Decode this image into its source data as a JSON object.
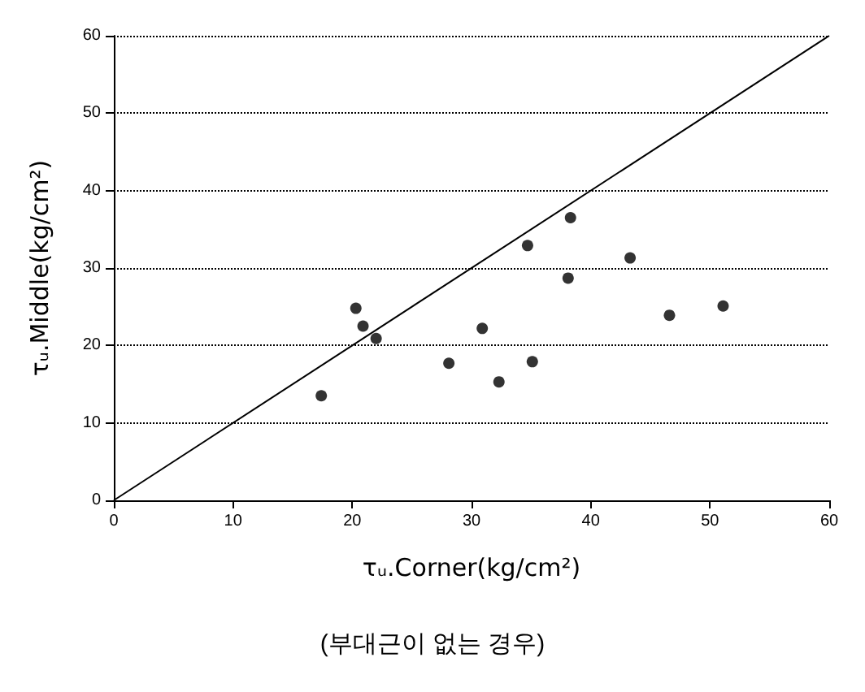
{
  "chart_data": {
    "type": "scatter",
    "xlabel": "τᵤ.Corner(kg/cm²)",
    "ylabel": "τᵤ.Middle(kg/cm²)",
    "annotations": [
      "(부대근이 없는 경우)"
    ],
    "series": [
      {
        "color": "#000000",
        "x": [
          17.4,
          20.3,
          20.9,
          22.0,
          28.1,
          30.9,
          32.3,
          34.7,
          35.1,
          38.3,
          38.1,
          43.3,
          46.6,
          51.1
        ],
        "values": [
          13.5,
          24.8,
          22.5,
          20.9,
          17.7,
          22.2,
          15.3,
          32.9,
          17.9,
          36.5,
          28.7,
          31.3,
          23.9,
          25.1
        ]
      },
      {
        "type": "line",
        "marker": "none",
        "color": "#000000",
        "x": [
          0,
          60
        ],
        "values": [
          0,
          60
        ]
      }
    ],
    "xlim": [
      0,
      60
    ],
    "xticks": [
      0,
      10,
      20,
      30,
      40,
      50,
      60
    ],
    "ylim": [
      0,
      60
    ],
    "yticks": [
      0,
      10,
      20,
      30,
      40,
      50,
      60
    ],
    "grid": "y",
    "marker": "circle",
    "line_style": "solid"
  }
}
